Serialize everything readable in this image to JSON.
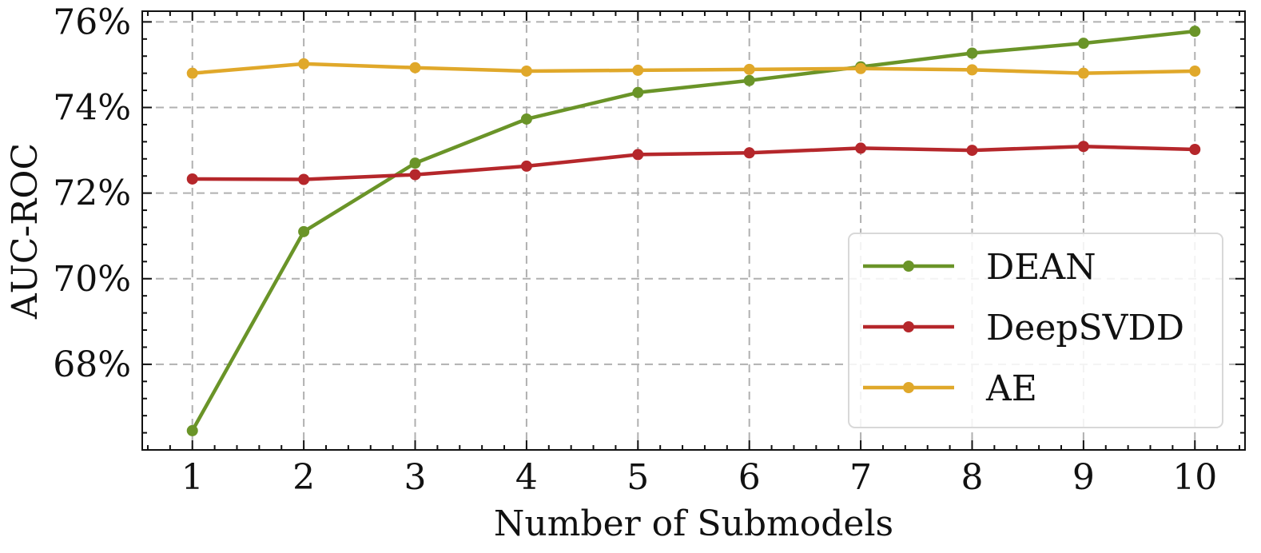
{
  "chart_data": {
    "type": "line",
    "xlabel": "Number of Submodels",
    "ylabel": "AUC-ROC",
    "x": [
      1,
      2,
      3,
      4,
      5,
      6,
      7,
      8,
      9,
      10
    ],
    "xlim": [
      0.55,
      10.45
    ],
    "ylim": [
      66.0,
      76.25
    ],
    "y_ticks": [
      68,
      70,
      72,
      74,
      76
    ],
    "y_tick_labels": [
      "68%",
      "70%",
      "72%",
      "74%",
      "76%"
    ],
    "x_tick_labels": [
      "1",
      "2",
      "3",
      "4",
      "5",
      "6",
      "7",
      "8",
      "9",
      "10"
    ],
    "grid": true,
    "legend_position": "lower-right",
    "series": [
      {
        "name": "DEAN",
        "color": "#6a9428",
        "values": [
          66.45,
          71.1,
          72.7,
          73.73,
          74.35,
          74.63,
          74.95,
          75.27,
          75.5,
          75.78
        ]
      },
      {
        "name": "DeepSVDD",
        "color": "#b5272b",
        "values": [
          72.33,
          72.32,
          72.43,
          72.63,
          72.9,
          72.94,
          73.05,
          73.0,
          73.09,
          73.02
        ]
      },
      {
        "name": "AE",
        "color": "#e0a82a",
        "values": [
          74.8,
          75.02,
          74.93,
          74.85,
          74.87,
          74.89,
          74.91,
          74.88,
          74.8,
          74.85
        ]
      }
    ]
  }
}
